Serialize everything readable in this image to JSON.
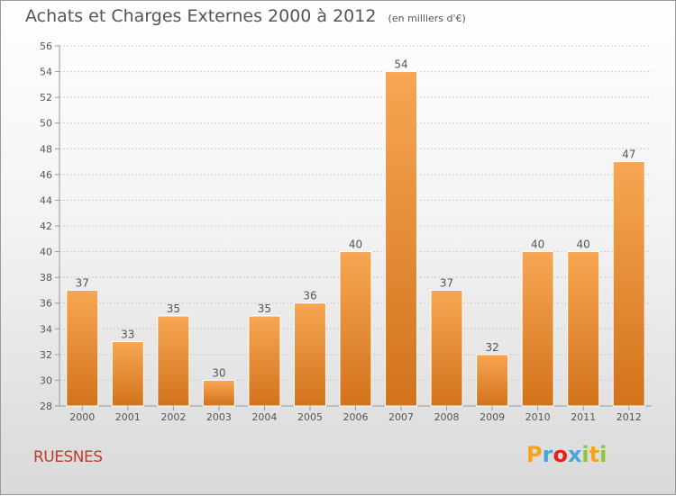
{
  "header": {
    "title": "Achats et Charges Externes 2000 à 2012",
    "subtitle": "(en milliers d'€)"
  },
  "footer": {
    "commune": "RUESNES",
    "logo_letters": [
      "P",
      "r",
      "o",
      "x",
      "i",
      "t",
      "i"
    ],
    "logo_colors": [
      "#f7a21b",
      "#4aa3df",
      "#e2231a",
      "#4aa3df",
      "#8cc63f",
      "#f7a21b",
      "#8cc63f"
    ]
  },
  "colors": {
    "bar_top": "#f7a653",
    "bar_bottom": "#d2731b",
    "axis": "#999999",
    "grid": "#cccccc",
    "text": "#555555"
  },
  "chart_data": {
    "type": "bar",
    "categories": [
      "2000",
      "2001",
      "2002",
      "2003",
      "2004",
      "2005",
      "2006",
      "2007",
      "2008",
      "2009",
      "2010",
      "2011",
      "2012"
    ],
    "values": [
      37,
      33,
      35,
      30,
      35,
      36,
      40,
      54,
      37,
      32,
      40,
      40,
      47
    ],
    "ylim": [
      28,
      56
    ],
    "yticks": [
      28,
      30,
      32,
      34,
      36,
      38,
      40,
      42,
      44,
      46,
      48,
      50,
      52,
      54,
      56
    ],
    "grid": true,
    "data_labels": true
  }
}
